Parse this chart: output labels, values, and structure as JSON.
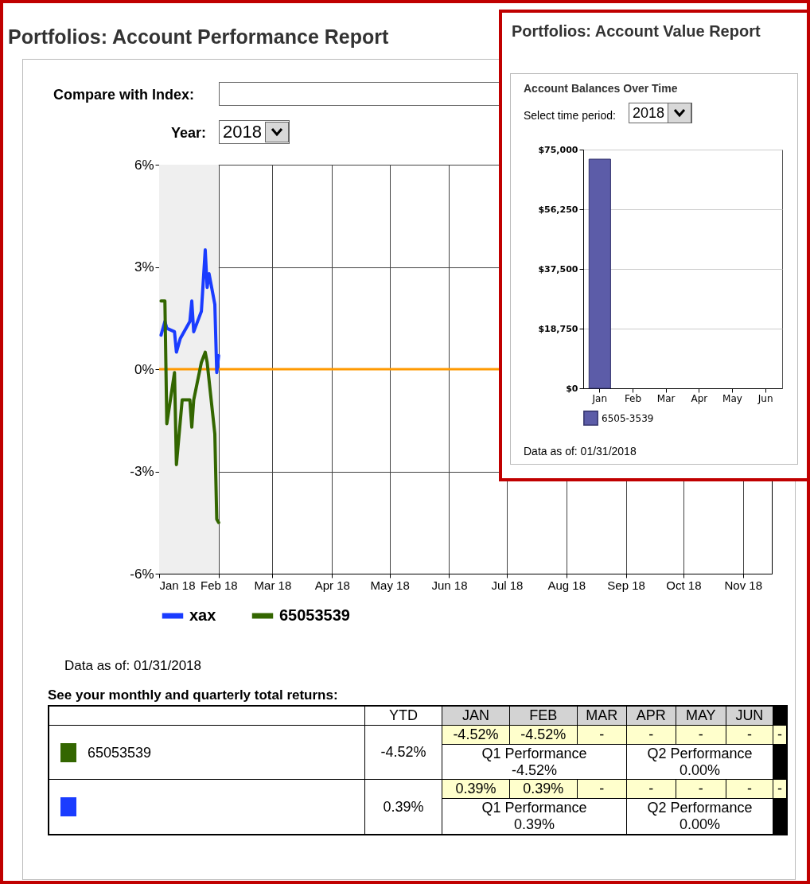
{
  "chart_data": [
    {
      "type": "line",
      "title": "Portfolios: Account Performance Report",
      "annotations": [
        "Compare with Index:",
        "Year:",
        "2018",
        "Data as of: 01/31/2018"
      ],
      "series": [
        {
          "name": "xax",
          "color": "#1a3cff",
          "x": [
            "2018-01-02",
            "2018-01-04",
            "2018-01-05",
            "2018-01-09",
            "2018-01-10",
            "2018-01-12",
            "2018-01-17",
            "2018-01-18",
            "2018-01-19",
            "2018-01-23",
            "2018-01-25",
            "2018-01-26",
            "2018-01-27",
            "2018-01-28",
            "2018-01-30",
            "2018-01-31",
            "2018-02-01"
          ],
          "values": [
            1.0,
            1.4,
            1.2,
            1.1,
            0.5,
            0.9,
            1.4,
            2.0,
            1.1,
            1.7,
            3.5,
            2.4,
            2.8,
            2.5,
            1.9,
            -0.1,
            0.4
          ]
        },
        {
          "name": "65053539",
          "color": "#336600",
          "x": [
            "2018-01-02",
            "2018-01-04",
            "2018-01-05",
            "2018-01-09",
            "2018-01-10",
            "2018-01-13",
            "2018-01-17",
            "2018-01-18",
            "2018-01-19",
            "2018-01-23",
            "2018-01-25",
            "2018-01-26",
            "2018-01-30",
            "2018-01-31",
            "2018-02-01"
          ],
          "values": [
            2.0,
            2.0,
            -1.6,
            -0.1,
            -2.8,
            -0.9,
            -0.9,
            -1.7,
            -0.9,
            0.2,
            0.5,
            0.2,
            -1.9,
            -4.4,
            -4.5
          ]
        }
      ],
      "xlim": [
        "2018-01-01",
        "2018-11-16"
      ],
      "xticks": [
        {
          "value": "2018-01-01",
          "label": "Jan 18"
        },
        {
          "value": "2018-02-01",
          "label": "Feb 18"
        },
        {
          "value": "2018-03-01",
          "label": "Mar 18"
        },
        {
          "value": "2018-04-01",
          "label": "Apr 18"
        },
        {
          "value": "2018-05-01",
          "label": "May 18"
        },
        {
          "value": "2018-06-01",
          "label": "Jun 18"
        },
        {
          "value": "2018-07-01",
          "label": "Jul 18"
        },
        {
          "value": "2018-08-01",
          "label": "Aug 18"
        },
        {
          "value": "2018-09-01",
          "label": "Sep 18"
        },
        {
          "value": "2018-10-01",
          "label": "Oct 18"
        },
        {
          "value": "2018-11-01",
          "label": "Nov 18"
        }
      ],
      "ylim": [
        -6,
        6
      ],
      "yticks": [
        {
          "value": -6,
          "label": "-6%"
        },
        {
          "value": -3,
          "label": "-3%"
        },
        {
          "value": 0,
          "label": "0%"
        },
        {
          "value": 3,
          "label": "3%"
        },
        {
          "value": 6,
          "label": "6%"
        }
      ],
      "ref_lines": [
        {
          "axis": "y",
          "value": 0,
          "color": "#ff9900"
        }
      ],
      "bands": [
        {
          "axis": "x",
          "from": "2018-01-01",
          "to": "2018-02-01",
          "color": "#efefef"
        }
      ],
      "grid": true,
      "legend": "bottom"
    },
    {
      "type": "bar",
      "title": "Portfolios: Account Value Report",
      "subtitle": "Account Balances Over Time",
      "annotations": [
        "Select time period:",
        "2018",
        "Data as of: 01/31/2018"
      ],
      "categories": [
        "Jan",
        "Feb",
        "Mar",
        "Apr",
        "May",
        "Jun"
      ],
      "series": [
        {
          "name": "6505-3539",
          "color": "#5c5ca8",
          "values": [
            72000,
            null,
            null,
            null,
            null,
            null
          ]
        }
      ],
      "ylim": [
        0,
        75000
      ],
      "yticks": [
        {
          "value": 0,
          "label": "$0"
        },
        {
          "value": 18750,
          "label": "$18,750"
        },
        {
          "value": 37500,
          "label": "$37,500"
        },
        {
          "value": 56250,
          "label": "$56,250"
        },
        {
          "value": 75000,
          "label": "$75,000"
        }
      ],
      "grid": true,
      "legend": "bottom left"
    },
    {
      "type": "other",
      "title": "See your monthly and quarterly total returns:",
      "annotations": [
        "YTD",
        "JAN",
        "FEB",
        "MAR",
        "APR",
        "MAY",
        "JUN",
        "65053539",
        "-4.52%",
        "-4.52%",
        "-4.52%",
        "-",
        "-",
        "-",
        "-",
        "-",
        "Q1 Performance",
        "-4.52%",
        "Q2 Performance",
        "0.00%",
        "0.39%",
        "0.39%",
        "0.39%",
        "-",
        "-",
        "-",
        "-",
        "-",
        "Q1 Performance",
        "0.39%",
        "Q2 Performance",
        "0.00%"
      ]
    }
  ]
}
